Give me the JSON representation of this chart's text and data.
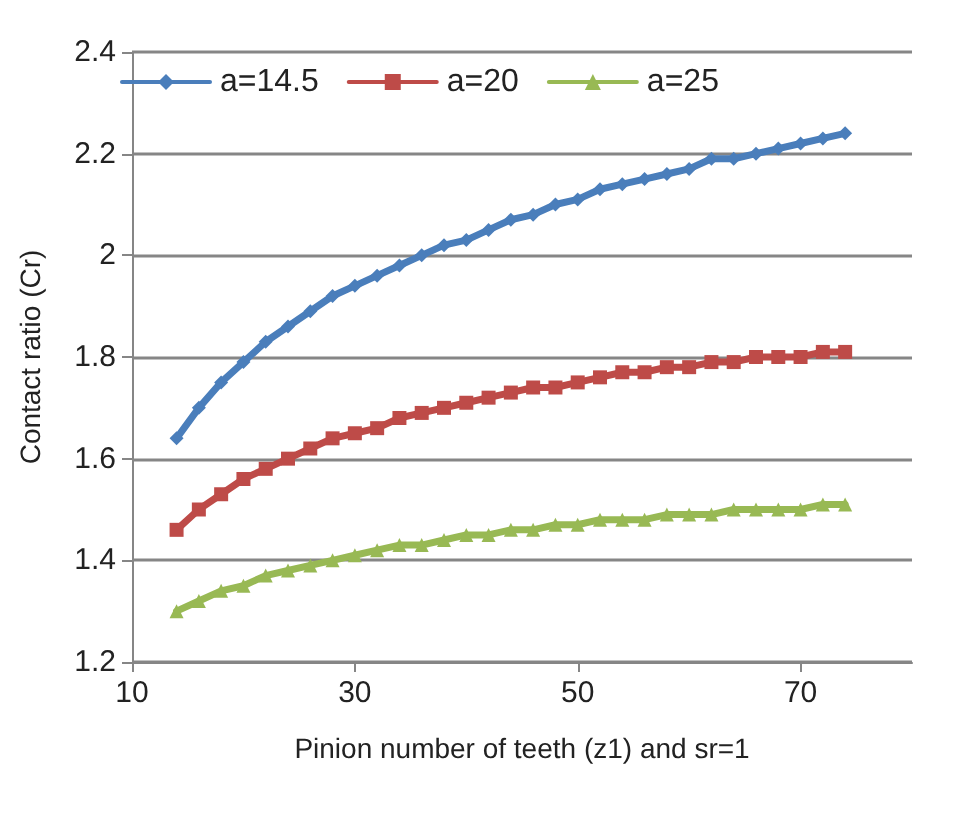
{
  "chart_data": {
    "type": "line",
    "xlabel": "Pinion number of teeth (z1) and sr=1",
    "ylabel": "Contact ratio (Cr)",
    "x": [
      14,
      16,
      18,
      20,
      22,
      24,
      26,
      28,
      30,
      32,
      34,
      36,
      38,
      40,
      42,
      44,
      46,
      48,
      50,
      52,
      54,
      56,
      58,
      60,
      62,
      64,
      66,
      68,
      70,
      72,
      74
    ],
    "series": [
      {
        "name": "a=14.5",
        "color": "#4a7ebb",
        "marker": "diamond",
        "values": [
          1.64,
          1.7,
          1.75,
          1.79,
          1.83,
          1.86,
          1.89,
          1.92,
          1.94,
          1.96,
          1.98,
          2.0,
          2.02,
          2.03,
          2.05,
          2.07,
          2.08,
          2.1,
          2.11,
          2.13,
          2.14,
          2.15,
          2.16,
          2.17,
          2.19,
          2.19,
          2.2,
          2.21,
          2.22,
          2.23,
          2.24
        ]
      },
      {
        "name": "a=20",
        "color": "#be4b48",
        "marker": "square",
        "values": [
          1.46,
          1.5,
          1.53,
          1.56,
          1.58,
          1.6,
          1.62,
          1.64,
          1.65,
          1.66,
          1.68,
          1.69,
          1.7,
          1.71,
          1.72,
          1.73,
          1.74,
          1.74,
          1.75,
          1.76,
          1.77,
          1.77,
          1.78,
          1.78,
          1.79,
          1.79,
          1.8,
          1.8,
          1.8,
          1.81,
          1.81
        ]
      },
      {
        "name": "a=25",
        "color": "#98b954",
        "marker": "triangle",
        "values": [
          1.3,
          1.32,
          1.34,
          1.35,
          1.37,
          1.38,
          1.39,
          1.4,
          1.41,
          1.42,
          1.43,
          1.43,
          1.44,
          1.45,
          1.45,
          1.46,
          1.46,
          1.47,
          1.47,
          1.48,
          1.48,
          1.48,
          1.49,
          1.49,
          1.49,
          1.5,
          1.5,
          1.5,
          1.5,
          1.51,
          1.51
        ]
      }
    ],
    "xlim": [
      10,
      80
    ],
    "xticks": [
      10,
      30,
      50,
      70
    ],
    "ylim": [
      1.2,
      2.4
    ],
    "yticks": [
      1.2,
      1.4,
      1.6,
      1.8,
      2,
      2.2,
      2.4
    ],
    "grid": "y",
    "legend": "top",
    "line_style": "solid"
  }
}
